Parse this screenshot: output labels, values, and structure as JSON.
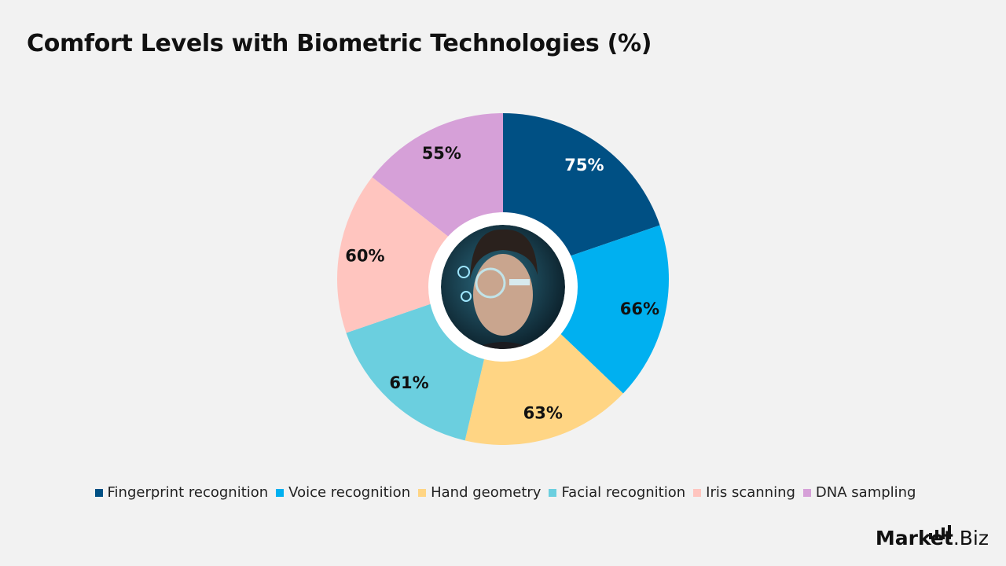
{
  "chart_data": {
    "type": "pie",
    "variant": "donut",
    "title": "Comfort Levels with Biometric Technologies (%)",
    "categories": [
      "Fingerprint recognition",
      "Voice recognition",
      "Hand geometry",
      "Facial recognition",
      "Iris scanning",
      "DNA sampling"
    ],
    "values": [
      75,
      66,
      63,
      61,
      60,
      55
    ],
    "data_labels": [
      "75%",
      "66%",
      "63%",
      "61%",
      "60%",
      "55%"
    ],
    "colors": [
      "#005084",
      "#00b0f0",
      "#ffd584",
      "#6bcfdf",
      "#ffc5bf",
      "#d6a0d8"
    ],
    "label_colors": [
      "#ffffff",
      "#111111",
      "#111111",
      "#111111",
      "#111111",
      "#111111"
    ],
    "legend_position": "bottom",
    "center_image": "face-recognition-photo"
  },
  "logo": {
    "bold": "Market",
    "light": ".Biz"
  }
}
